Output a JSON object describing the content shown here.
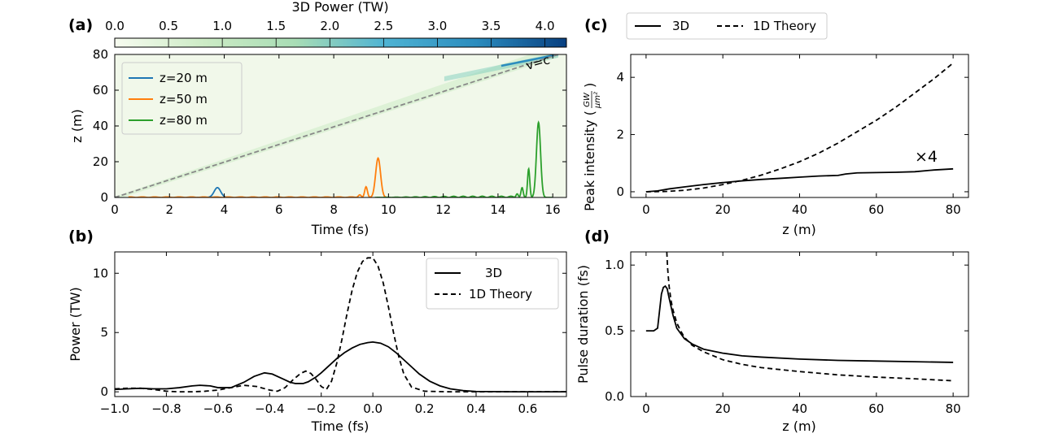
{
  "panels": {
    "a": "(a)",
    "b": "(b)",
    "c": "(c)",
    "d": "(d)"
  },
  "colors": {
    "blue": "#1f77b4",
    "orange": "#ff7f0e",
    "green": "#2ca02c",
    "bg_light": "#f1f8ea",
    "cbar_low": "#f7fcf0",
    "cbar_high": "#084081"
  },
  "chart_data": [
    {
      "id": "a",
      "type": "heatmap",
      "colorbar": {
        "label": "3D Power (TW)",
        "ticks": [
          "0.0",
          "0.5",
          "1.0",
          "1.5",
          "2.0",
          "2.5",
          "3.0",
          "3.5",
          "4.0"
        ],
        "range": [
          0,
          4.2
        ]
      },
      "xlabel": "Time (fs)",
      "ylabel": "z (m)",
      "xlim": [
        0,
        16.5
      ],
      "ylim": [
        0,
        80
      ],
      "xticks": [
        "0",
        "2",
        "4",
        "6",
        "8",
        "10",
        "12",
        "14",
        "16"
      ],
      "yticks": [
        "0",
        "20",
        "40",
        "60",
        "80"
      ],
      "annotation": "v=c",
      "light_line": {
        "t": [
          0,
          16.2
        ],
        "z": [
          0,
          80
        ]
      },
      "series": [
        {
          "name": "z=20 m",
          "color": "#1f77b4",
          "peaks": [
            [
              3.75,
              5.5,
              0.12
            ]
          ],
          "range": [
            3.0,
            4.1
          ]
        },
        {
          "name": "z=50 m",
          "color": "#ff7f0e",
          "peaks": [
            [
              9.62,
              22,
              0.09
            ],
            [
              9.18,
              6,
              0.05
            ],
            [
              8.95,
              1.5,
              0.05
            ]
          ],
          "range": [
            0.5,
            9.95
          ]
        },
        {
          "name": "z=80 m",
          "color": "#2ca02c",
          "peaks": [
            [
              15.48,
              42,
              0.075
            ],
            [
              15.12,
              16,
              0.04
            ],
            [
              14.88,
              5.5,
              0.04
            ],
            [
              14.7,
              2,
              0.04
            ]
          ],
          "range": [
            9.5,
            16.0
          ]
        }
      ]
    },
    {
      "id": "b",
      "type": "line",
      "xlabel": "Time (fs)",
      "ylabel": "Power (TW)",
      "xlim": [
        -1.0,
        0.75
      ],
      "ylim": [
        -0.4,
        11.8
      ],
      "xticks": [
        -1.0,
        -0.8,
        -0.6,
        -0.4,
        -0.2,
        0.0,
        0.2,
        0.4,
        0.6
      ],
      "xtick_labels": [
        "−1.0",
        "−0.8",
        "−0.6",
        "−0.4",
        "−0.2",
        "0.0",
        "0.2",
        "0.4",
        "0.6"
      ],
      "yticks": [
        0,
        5,
        10
      ],
      "ytick_labels": [
        "0",
        "5",
        "10"
      ],
      "series": [
        {
          "name": "3D",
          "dash": "solid",
          "x": [
            -1.0,
            -0.95,
            -0.9,
            -0.85,
            -0.8,
            -0.75,
            -0.7,
            -0.67,
            -0.63,
            -0.6,
            -0.55,
            -0.5,
            -0.46,
            -0.42,
            -0.39,
            -0.35,
            -0.32,
            -0.3,
            -0.27,
            -0.25,
            -0.22,
            -0.2,
            -0.17,
            -0.14,
            -0.11,
            -0.08,
            -0.05,
            -0.02,
            0.0,
            0.03,
            0.06,
            0.09,
            0.12,
            0.15,
            0.18,
            0.22,
            0.26,
            0.3,
            0.35,
            0.4,
            0.5,
            0.6,
            0.75
          ],
          "y": [
            0.2,
            0.25,
            0.3,
            0.25,
            0.25,
            0.35,
            0.5,
            0.55,
            0.5,
            0.35,
            0.35,
            0.8,
            1.3,
            1.6,
            1.5,
            1.1,
            0.8,
            0.7,
            0.7,
            0.85,
            1.25,
            1.6,
            2.2,
            2.8,
            3.3,
            3.7,
            4.0,
            4.15,
            4.2,
            4.1,
            3.8,
            3.3,
            2.7,
            2.1,
            1.5,
            0.9,
            0.5,
            0.25,
            0.1,
            0.03,
            0.01,
            0.0,
            0.0
          ]
        },
        {
          "name": "1D Theory",
          "dash": "dashed",
          "x": [
            -1.0,
            -0.95,
            -0.9,
            -0.85,
            -0.8,
            -0.75,
            -0.7,
            -0.65,
            -0.6,
            -0.55,
            -0.5,
            -0.45,
            -0.4,
            -0.37,
            -0.34,
            -0.31,
            -0.28,
            -0.26,
            -0.24,
            -0.22,
            -0.2,
            -0.18,
            -0.16,
            -0.14,
            -0.12,
            -0.1,
            -0.08,
            -0.06,
            -0.04,
            -0.02,
            0.0,
            0.02,
            0.04,
            0.06,
            0.08,
            0.1,
            0.12,
            0.15,
            0.2,
            0.3,
            0.4,
            0.5,
            0.75
          ],
          "y": [
            0.25,
            0.3,
            0.3,
            0.2,
            0.05,
            0.0,
            0.0,
            0.05,
            0.15,
            0.35,
            0.55,
            0.45,
            0.15,
            0.05,
            0.35,
            1.0,
            1.55,
            1.75,
            1.55,
            1.05,
            0.45,
            0.2,
            0.9,
            2.4,
            4.4,
            6.6,
            8.6,
            10.1,
            11.0,
            11.3,
            11.3,
            10.6,
            9.2,
            7.2,
            5.0,
            3.0,
            1.5,
            0.4,
            0.05,
            0.0,
            0.0,
            0.0,
            0.0
          ]
        }
      ]
    },
    {
      "id": "c",
      "type": "line",
      "xlabel": "z (m)",
      "ylabel": "Peak intensity (GW/μm²)",
      "ylabel_unit_num": "GW",
      "ylabel_unit_den": "μm²",
      "xlim": [
        -4,
        84
      ],
      "ylim": [
        -0.2,
        4.8
      ],
      "xticks": [
        0,
        20,
        40,
        60,
        80
      ],
      "xtick_labels": [
        "0",
        "20",
        "40",
        "60",
        "80"
      ],
      "yticks": [
        0,
        2,
        4
      ],
      "ytick_labels": [
        "0",
        "2",
        "4"
      ],
      "annotation": "×4",
      "series": [
        {
          "name": "3D",
          "dash": "solid",
          "x": [
            0,
            3,
            6,
            10,
            15,
            20,
            25,
            30,
            35,
            40,
            45,
            50,
            52,
            55,
            60,
            65,
            70,
            75,
            80
          ],
          "y": [
            0.0,
            0.03,
            0.1,
            0.17,
            0.25,
            0.32,
            0.38,
            0.43,
            0.47,
            0.51,
            0.55,
            0.57,
            0.62,
            0.66,
            0.67,
            0.68,
            0.7,
            0.76,
            0.8
          ]
        },
        {
          "name": "1D Theory",
          "dash": "dashed",
          "x": [
            0,
            5,
            10,
            15,
            20,
            25,
            30,
            35,
            40,
            45,
            50,
            55,
            60,
            65,
            70,
            75,
            80
          ],
          "y": [
            0.0,
            0.01,
            0.05,
            0.13,
            0.25,
            0.4,
            0.58,
            0.8,
            1.05,
            1.35,
            1.7,
            2.1,
            2.5,
            2.95,
            3.45,
            3.95,
            4.5
          ]
        }
      ]
    },
    {
      "id": "d",
      "type": "line",
      "xlabel": "z (m)",
      "ylabel": "Pulse duration (fs)",
      "xlim": [
        -4,
        84
      ],
      "ylim": [
        0.0,
        1.1
      ],
      "xticks": [
        0,
        20,
        40,
        60,
        80
      ],
      "xtick_labels": [
        "0",
        "20",
        "40",
        "60",
        "80"
      ],
      "yticks": [
        0.0,
        0.5,
        1.0
      ],
      "ytick_labels": [
        "0.0",
        "0.5",
        "1.0"
      ],
      "series": [
        {
          "name": "3D",
          "dash": "solid",
          "x": [
            0,
            2,
            3,
            3.5,
            4,
            4.5,
            5,
            5.5,
            6,
            7,
            8,
            10,
            12,
            15,
            20,
            25,
            30,
            40,
            50,
            60,
            70,
            80
          ],
          "y": [
            0.5,
            0.5,
            0.52,
            0.65,
            0.78,
            0.83,
            0.84,
            0.82,
            0.75,
            0.62,
            0.52,
            0.44,
            0.4,
            0.36,
            0.33,
            0.31,
            0.3,
            0.285,
            0.275,
            0.27,
            0.265,
            0.26
          ]
        },
        {
          "name": "1D Theory",
          "dash": "dashed",
          "x": [
            5.4,
            5.6,
            6,
            6.5,
            7,
            8,
            9,
            10,
            12,
            15,
            20,
            25,
            30,
            40,
            50,
            60,
            70,
            80
          ],
          "y": [
            1.1,
            0.98,
            0.84,
            0.73,
            0.66,
            0.56,
            0.5,
            0.45,
            0.39,
            0.34,
            0.28,
            0.245,
            0.22,
            0.19,
            0.165,
            0.148,
            0.135,
            0.12
          ]
        }
      ]
    }
  ]
}
